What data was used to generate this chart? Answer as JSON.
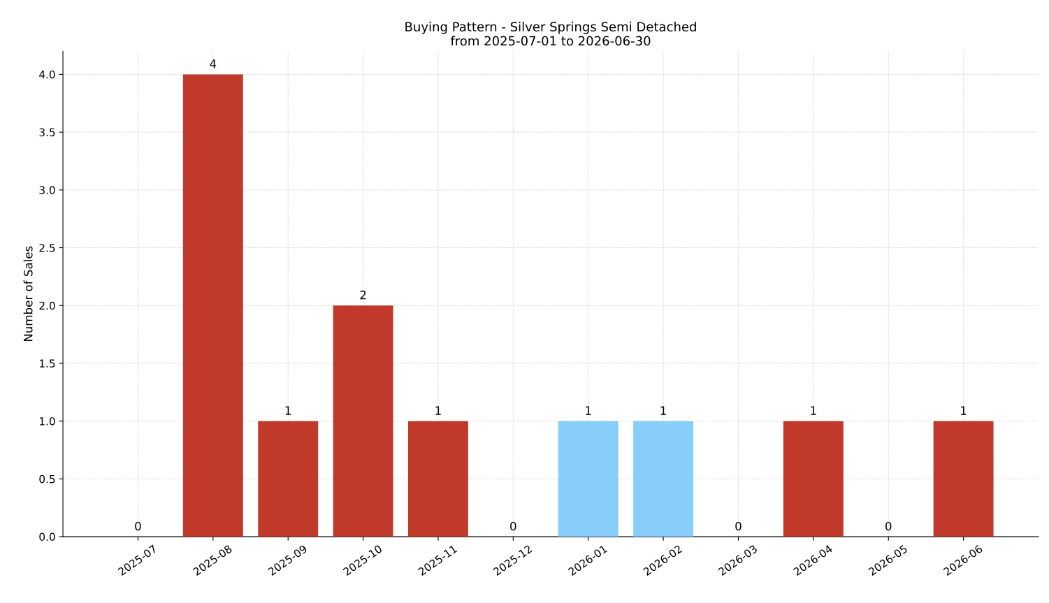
{
  "chart_data": {
    "type": "bar",
    "title": "Buying Pattern - Silver Springs Semi Detached\nfrom 2025-07-01 to 2026-06-30",
    "ylabel": "Number of Sales",
    "categories": [
      "2025-07",
      "2025-08",
      "2025-09",
      "2025-10",
      "2025-11",
      "2025-12",
      "2026-01",
      "2026-02",
      "2026-03",
      "2026-04",
      "2026-05",
      "2026-06"
    ],
    "values": [
      0,
      4,
      1,
      2,
      1,
      0,
      1,
      1,
      0,
      1,
      0,
      1
    ],
    "colors": [
      "#c0392b",
      "#c0392b",
      "#c0392b",
      "#c0392b",
      "#c0392b",
      "#c0392b",
      "#87cefa",
      "#87cefa",
      "#c0392b",
      "#c0392b",
      "#c0392b",
      "#c0392b"
    ],
    "ylim": [
      0,
      4.2
    ],
    "yticks": [
      {
        "value": 0,
        "label": "0.0"
      },
      {
        "value": 0.5,
        "label": "0.5"
      },
      {
        "value": 1,
        "label": "1.0"
      },
      {
        "value": 1.5,
        "label": "1.5"
      },
      {
        "value": 2,
        "label": "2.0"
      },
      {
        "value": 2.5,
        "label": "2.5"
      },
      {
        "value": 3,
        "label": "3.0"
      },
      {
        "value": 3.5,
        "label": "3.5"
      },
      {
        "value": 4,
        "label": "4.0"
      }
    ],
    "grid": true,
    "data_labels": true
  }
}
